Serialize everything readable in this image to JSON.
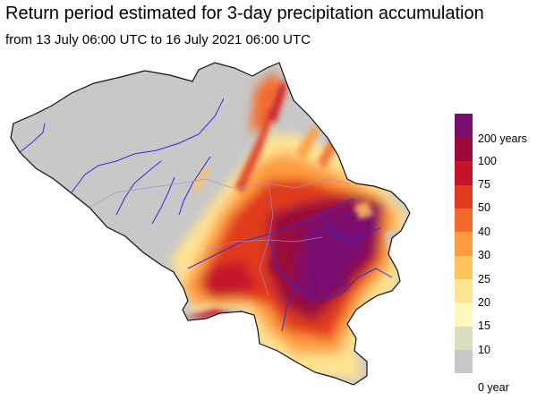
{
  "title": "Return period estimated for 3-day precipitation accumulation",
  "subtitle": "from 13 July 06:00 UTC to 16 July 2021 06:00 UTC",
  "legend": {
    "colors": [
      "#c8c8c8",
      "#dcdcc0",
      "#fff7bc",
      "#fee391",
      "#fec45e",
      "#fe9d40",
      "#f46a2c",
      "#e03a1f",
      "#c4132a",
      "#990a3a",
      "#7a0e70"
    ],
    "labels": [
      "0 year",
      "10",
      "15",
      "20",
      "25",
      "30",
      "40",
      "50",
      "75",
      "100",
      "200 years"
    ]
  }
}
